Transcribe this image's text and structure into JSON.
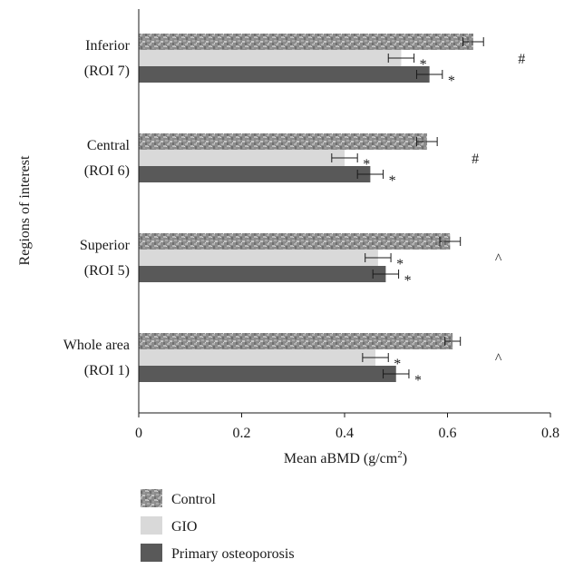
{
  "chart_data": {
    "type": "bar",
    "orientation": "horizontal",
    "categories": [
      [
        "Inferior",
        "(ROI 7)"
      ],
      [
        "Central",
        "(ROI 6)"
      ],
      [
        "Superior",
        "(ROI 5)"
      ],
      [
        "Whole area",
        "(ROI 1)"
      ]
    ],
    "series": [
      {
        "name": "Control",
        "color": "#8a8a8a",
        "pattern": "mottled",
        "values": [
          0.65,
          0.56,
          0.605,
          0.61
        ],
        "errors": [
          0.02,
          0.02,
          0.02,
          0.015
        ],
        "markers": [
          "",
          "",
          "",
          ""
        ]
      },
      {
        "name": "GIO",
        "color": "#d9d9d9",
        "values": [
          0.51,
          0.4,
          0.465,
          0.46
        ],
        "errors": [
          0.025,
          0.025,
          0.025,
          0.025
        ],
        "markers": [
          "*",
          "*",
          "*",
          "*"
        ]
      },
      {
        "name": "Primary osteoporosis",
        "color": "#595959",
        "values": [
          0.565,
          0.45,
          0.48,
          0.5
        ],
        "errors": [
          0.025,
          0.025,
          0.025,
          0.025
        ],
        "markers": [
          "*",
          "*",
          "*",
          "*"
        ]
      }
    ],
    "group_annotations": [
      "#",
      "#",
      "^",
      "^"
    ],
    "xticks": [
      "0",
      "0.2",
      "0.4",
      "0.6",
      "0.8"
    ],
    "xlim": [
      0,
      0.8
    ],
    "xlabel": "Mean aBMD (g/cm",
    "xlabel_superscript": "2",
    "xlabel_suffix": ")",
    "ylabel": "Regions of interest",
    "legend_position": "bottom-left",
    "grid": false
  }
}
